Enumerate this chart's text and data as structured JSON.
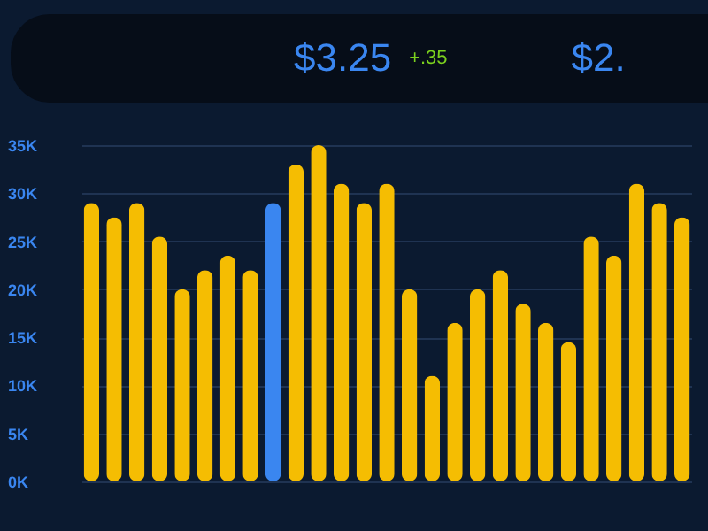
{
  "chart_data": {
    "type": "bar",
    "annotations": [
      "$3.25",
      "+.35",
      "$2."
    ],
    "categories": [
      null,
      null,
      null,
      null,
      null,
      null,
      null,
      null,
      null,
      null,
      null,
      null,
      null,
      null,
      null,
      null,
      null,
      null,
      null,
      null,
      null,
      null,
      null,
      null,
      null,
      null,
      null
    ],
    "values": [
      29000,
      27500,
      29000,
      25500,
      20000,
      22000,
      23500,
      22000,
      29000,
      33000,
      35000,
      31000,
      29000,
      31000,
      20000,
      11000,
      16500,
      20000,
      22000,
      18500,
      16500,
      14500,
      25500,
      23500,
      31000,
      29000,
      27500
    ],
    "colors": [
      "#f5bd02",
      "#f5bd02",
      "#f5bd02",
      "#f5bd02",
      "#f5bd02",
      "#f5bd02",
      "#f5bd02",
      "#f5bd02",
      "#3a86f0",
      "#f5bd02",
      "#f5bd02",
      "#f5bd02",
      "#f5bd02",
      "#f5bd02",
      "#f5bd02",
      "#f5bd02",
      "#f5bd02",
      "#f5bd02",
      "#f5bd02",
      "#f5bd02",
      "#f5bd02",
      "#f5bd02",
      "#f5bd02",
      "#f5bd02",
      "#f5bd02",
      "#f5bd02",
      "#f5bd02"
    ],
    "ylim": [
      0,
      35000
    ],
    "yticks": [
      {
        "value": 0,
        "label": "0K"
      },
      {
        "value": 5000,
        "label": "5K"
      },
      {
        "value": 10000,
        "label": "10K"
      },
      {
        "value": 15000,
        "label": "15K"
      },
      {
        "value": 20000,
        "label": "20K"
      },
      {
        "value": 25000,
        "label": "25K"
      },
      {
        "value": 30000,
        "label": "30K"
      },
      {
        "value": 35000,
        "label": "35K"
      }
    ],
    "grid": "y"
  }
}
